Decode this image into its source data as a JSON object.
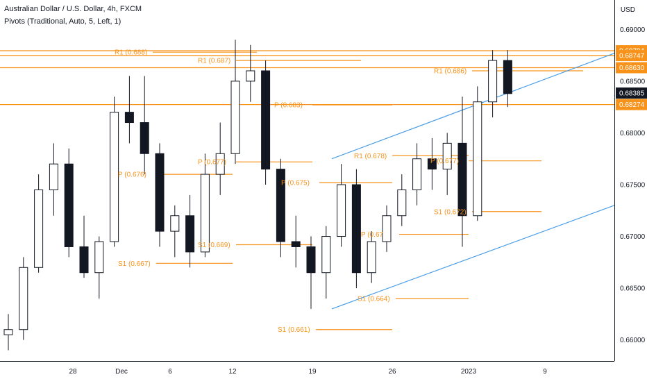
{
  "header": {
    "title": "Australian Dollar / U.S. Dollar, 4h, FXCM",
    "indicator": "Pivots (Traditional, Auto, 5, Left, 1)"
  },
  "currency": "USD",
  "colors": {
    "bull": "#ffffff",
    "bear": "#131722",
    "pivot": "#f7931a",
    "channel": "#4a9ee8",
    "current_tag": "#131722"
  },
  "chart_data": {
    "type": "candlestick",
    "title": "Australian Dollar / U.S. Dollar, 4h, FXCM",
    "indicator": "Pivots (Traditional, Auto, 5, Left, 1)",
    "y_range": [
      0.6585,
      0.6915
    ],
    "y_ticks": [
      "0.66000",
      "0.66500",
      "0.67000",
      "0.67500",
      "0.68000",
      "0.68500",
      "0.69000"
    ],
    "x_ticks": [
      "28",
      "Dec",
      "6",
      "12",
      "19",
      "26",
      "2023",
      "9"
    ],
    "ohlc": [
      {
        "date": "Nov 22",
        "o": 0.6605,
        "h": 0.6625,
        "l": 0.659,
        "c": 0.661
      },
      {
        "date": "Nov 23",
        "o": 0.661,
        "h": 0.668,
        "l": 0.66,
        "c": 0.667
      },
      {
        "date": "Nov 24",
        "o": 0.667,
        "h": 0.676,
        "l": 0.6665,
        "c": 0.6745
      },
      {
        "date": "Nov 25",
        "o": 0.6745,
        "h": 0.679,
        "l": 0.672,
        "c": 0.677
      },
      {
        "date": "Nov 28",
        "o": 0.677,
        "h": 0.6785,
        "l": 0.668,
        "c": 0.669
      },
      {
        "date": "Nov 29",
        "o": 0.669,
        "h": 0.672,
        "l": 0.666,
        "c": 0.6665
      },
      {
        "date": "Nov 30",
        "o": 0.6665,
        "h": 0.67,
        "l": 0.664,
        "c": 0.6695
      },
      {
        "date": "Dec 1",
        "o": 0.6695,
        "h": 0.6835,
        "l": 0.669,
        "c": 0.682
      },
      {
        "date": "Dec 2",
        "o": 0.682,
        "h": 0.6855,
        "l": 0.679,
        "c": 0.681
      },
      {
        "date": "Dec 5",
        "o": 0.681,
        "h": 0.6855,
        "l": 0.676,
        "c": 0.678
      },
      {
        "date": "Dec 6",
        "o": 0.678,
        "h": 0.679,
        "l": 0.669,
        "c": 0.6705
      },
      {
        "date": "Dec 7",
        "o": 0.6705,
        "h": 0.673,
        "l": 0.668,
        "c": 0.672
      },
      {
        "date": "Dec 8",
        "o": 0.672,
        "h": 0.674,
        "l": 0.667,
        "c": 0.6685
      },
      {
        "date": "Dec 9",
        "o": 0.6685,
        "h": 0.678,
        "l": 0.668,
        "c": 0.676
      },
      {
        "date": "Dec 12",
        "o": 0.676,
        "h": 0.681,
        "l": 0.674,
        "c": 0.678
      },
      {
        "date": "Dec 13",
        "o": 0.678,
        "h": 0.689,
        "l": 0.677,
        "c": 0.685
      },
      {
        "date": "Dec 14",
        "o": 0.685,
        "h": 0.6885,
        "l": 0.683,
        "c": 0.686
      },
      {
        "date": "Dec 15",
        "o": 0.686,
        "h": 0.687,
        "l": 0.675,
        "c": 0.6765
      },
      {
        "date": "Dec 16",
        "o": 0.6765,
        "h": 0.6775,
        "l": 0.668,
        "c": 0.6695
      },
      {
        "date": "Dec 19",
        "o": 0.6695,
        "h": 0.672,
        "l": 0.667,
        "c": 0.669
      },
      {
        "date": "Dec 20",
        "o": 0.669,
        "h": 0.67,
        "l": 0.663,
        "c": 0.6665
      },
      {
        "date": "Dec 21",
        "o": 0.6665,
        "h": 0.671,
        "l": 0.664,
        "c": 0.67
      },
      {
        "date": "Dec 22",
        "o": 0.67,
        "h": 0.677,
        "l": 0.669,
        "c": 0.675
      },
      {
        "date": "Dec 23",
        "o": 0.675,
        "h": 0.6765,
        "l": 0.665,
        "c": 0.6665
      },
      {
        "date": "Dec 26",
        "o": 0.6665,
        "h": 0.6705,
        "l": 0.6655,
        "c": 0.6695
      },
      {
        "date": "Dec 27",
        "o": 0.6695,
        "h": 0.673,
        "l": 0.6685,
        "c": 0.672
      },
      {
        "date": "Dec 28",
        "o": 0.672,
        "h": 0.676,
        "l": 0.671,
        "c": 0.6745
      },
      {
        "date": "Dec 29",
        "o": 0.6745,
        "h": 0.679,
        "l": 0.673,
        "c": 0.6775
      },
      {
        "date": "Dec 30",
        "o": 0.6775,
        "h": 0.6795,
        "l": 0.6745,
        "c": 0.6765
      },
      {
        "date": "Jan 2",
        "o": 0.6765,
        "h": 0.68,
        "l": 0.674,
        "c": 0.679
      },
      {
        "date": "Jan 3",
        "o": 0.679,
        "h": 0.6835,
        "l": 0.669,
        "c": 0.672
      },
      {
        "date": "Jan 4",
        "o": 0.672,
        "h": 0.6845,
        "l": 0.6715,
        "c": 0.683
      },
      {
        "date": "Jan 5",
        "o": 0.683,
        "h": 0.688,
        "l": 0.6815,
        "c": 0.687
      },
      {
        "date": "Jan 6",
        "o": 0.687,
        "h": 0.688,
        "l": 0.6825,
        "c": 0.6838
      }
    ],
    "pivot_levels": [
      {
        "label": "R1 (0.688)",
        "value": 0.6878
      },
      {
        "label": "R1 (0.687)",
        "value": 0.687
      },
      {
        "label": "R1 (0.686)",
        "value": 0.686
      },
      {
        "label": "P (0.683)",
        "value": 0.6827
      },
      {
        "label": "P (0.676)",
        "value": 0.676
      },
      {
        "label": "P (0.677)",
        "value": 0.6772
      },
      {
        "label": "P (0.675)",
        "value": 0.6752
      },
      {
        "label": "R1 (0.678)",
        "value": 0.6778
      },
      {
        "label": "P (0.67",
        "value": 0.6702
      },
      {
        "label": "P (0.677)",
        "value": 0.6773
      },
      {
        "label": "S1 (0.672)",
        "value": 0.6724
      },
      {
        "label": "S1 (0.669)",
        "value": 0.6692
      },
      {
        "label": "S1 (0.667)",
        "value": 0.6674
      },
      {
        "label": "S1 (0.664)",
        "value": 0.664
      },
      {
        "label": "S1 (0.661)",
        "value": 0.661
      }
    ],
    "price_tags": [
      {
        "label": "0.68794",
        "value": 0.68794,
        "kind": "pivot"
      },
      {
        "label": "0.68747",
        "value": 0.68747,
        "kind": "pivot"
      },
      {
        "label": "0.68630",
        "value": 0.6863,
        "kind": "pivot"
      },
      {
        "label": "0.68385",
        "value": 0.68385,
        "kind": "current"
      },
      {
        "label": "0.68274",
        "value": 0.68274,
        "kind": "pivot"
      }
    ],
    "channel": {
      "upper": [
        {
          "date": "Dec 20",
          "value": 0.6775
        },
        {
          "date": "Jan 10",
          "value": 0.6877
        }
      ],
      "lower": [
        {
          "date": "Dec 20",
          "value": 0.663
        },
        {
          "date": "Jan 10",
          "value": 0.673
        }
      ]
    }
  }
}
